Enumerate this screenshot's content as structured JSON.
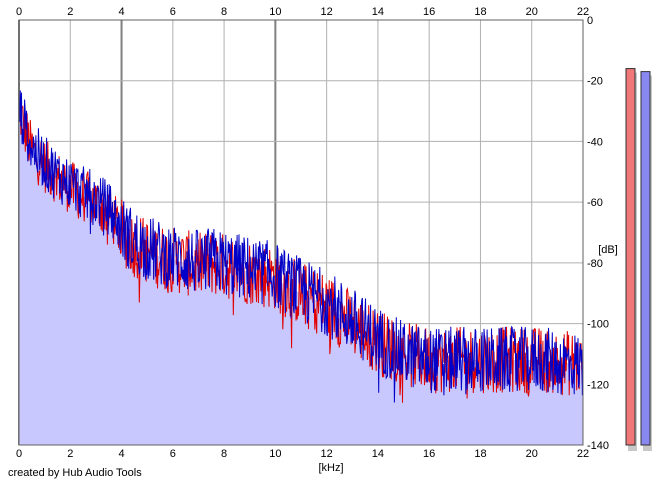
{
  "credit": "created by Hub Audio Tools",
  "colors": {
    "background": "#ffffff",
    "plot_background": "#ffffff",
    "fill": "#c8c8ff",
    "grid": "#b0b0b0",
    "series_red": "#e00000",
    "series_blue": "#0000c8",
    "meter_left": "#f07878",
    "meter_right": "#8888f0"
  },
  "chart_data": {
    "type": "line",
    "xlabel": "[kHz]",
    "ylabel": "[dB]",
    "xlim": [
      0,
      22
    ],
    "ylim": [
      -140,
      0
    ],
    "x_ticks": [
      "0",
      "2",
      "4",
      "6",
      "8",
      "10",
      "12",
      "14",
      "16",
      "18",
      "20",
      "22"
    ],
    "y_ticks": [
      "0",
      "-20",
      "-40",
      "-60",
      "-80",
      "-100",
      "-120",
      "-140"
    ],
    "grid": true,
    "series": [
      {
        "color": "#e00000",
        "x": [
          0,
          0.5,
          1,
          1.5,
          2,
          2.5,
          3,
          3.5,
          4,
          4.5,
          5,
          5.5,
          6,
          6.5,
          7,
          7.5,
          8,
          8.5,
          9,
          9.5,
          10,
          10.5,
          11,
          11.5,
          12,
          12.5,
          13,
          13.5,
          14,
          14.5,
          15,
          15.5,
          16,
          16.5,
          17,
          17.5,
          18,
          18.5,
          19,
          19.5,
          20,
          20.5,
          21,
          21.5,
          22
        ],
        "y": [
          -30,
          -43,
          -48,
          -52,
          -55,
          -58,
          -60,
          -63,
          -70,
          -74,
          -76,
          -78,
          -79,
          -80,
          -81,
          -80,
          -81,
          -82,
          -83,
          -84,
          -85,
          -88,
          -90,
          -92,
          -94,
          -97,
          -100,
          -103,
          -106,
          -108,
          -110,
          -111,
          -112,
          -112,
          -112,
          -112,
          -112,
          -112,
          -112,
          -112,
          -112,
          -112,
          -113,
          -113,
          -114
        ]
      },
      {
        "color": "#0000c8",
        "x": [
          0,
          0.5,
          1,
          1.5,
          2,
          2.5,
          3,
          3.5,
          4,
          4.5,
          5,
          5.5,
          6,
          6.5,
          7,
          7.5,
          8,
          8.5,
          9,
          9.5,
          10,
          10.5,
          11,
          11.5,
          12,
          12.5,
          13,
          13.5,
          14,
          14.5,
          15,
          15.5,
          16,
          16.5,
          17,
          17.5,
          18,
          18.5,
          19,
          19.5,
          20,
          20.5,
          21,
          21.5,
          22
        ],
        "y": [
          -29,
          -42,
          -47,
          -51,
          -54,
          -57,
          -59,
          -62,
          -69,
          -73,
          -75,
          -77,
          -78,
          -79,
          -80,
          -79,
          -80,
          -81,
          -82,
          -83,
          -84,
          -87,
          -89,
          -91,
          -93,
          -96,
          -99,
          -102,
          -105,
          -108,
          -110,
          -111,
          -112,
          -112,
          -112,
          -112,
          -112,
          -112,
          -112,
          -112,
          -112,
          -112,
          -113,
          -113,
          -114
        ]
      }
    ],
    "level_meters": [
      {
        "channel": "left",
        "value_db": -16
      },
      {
        "channel": "right",
        "value_db": -17
      }
    ]
  }
}
